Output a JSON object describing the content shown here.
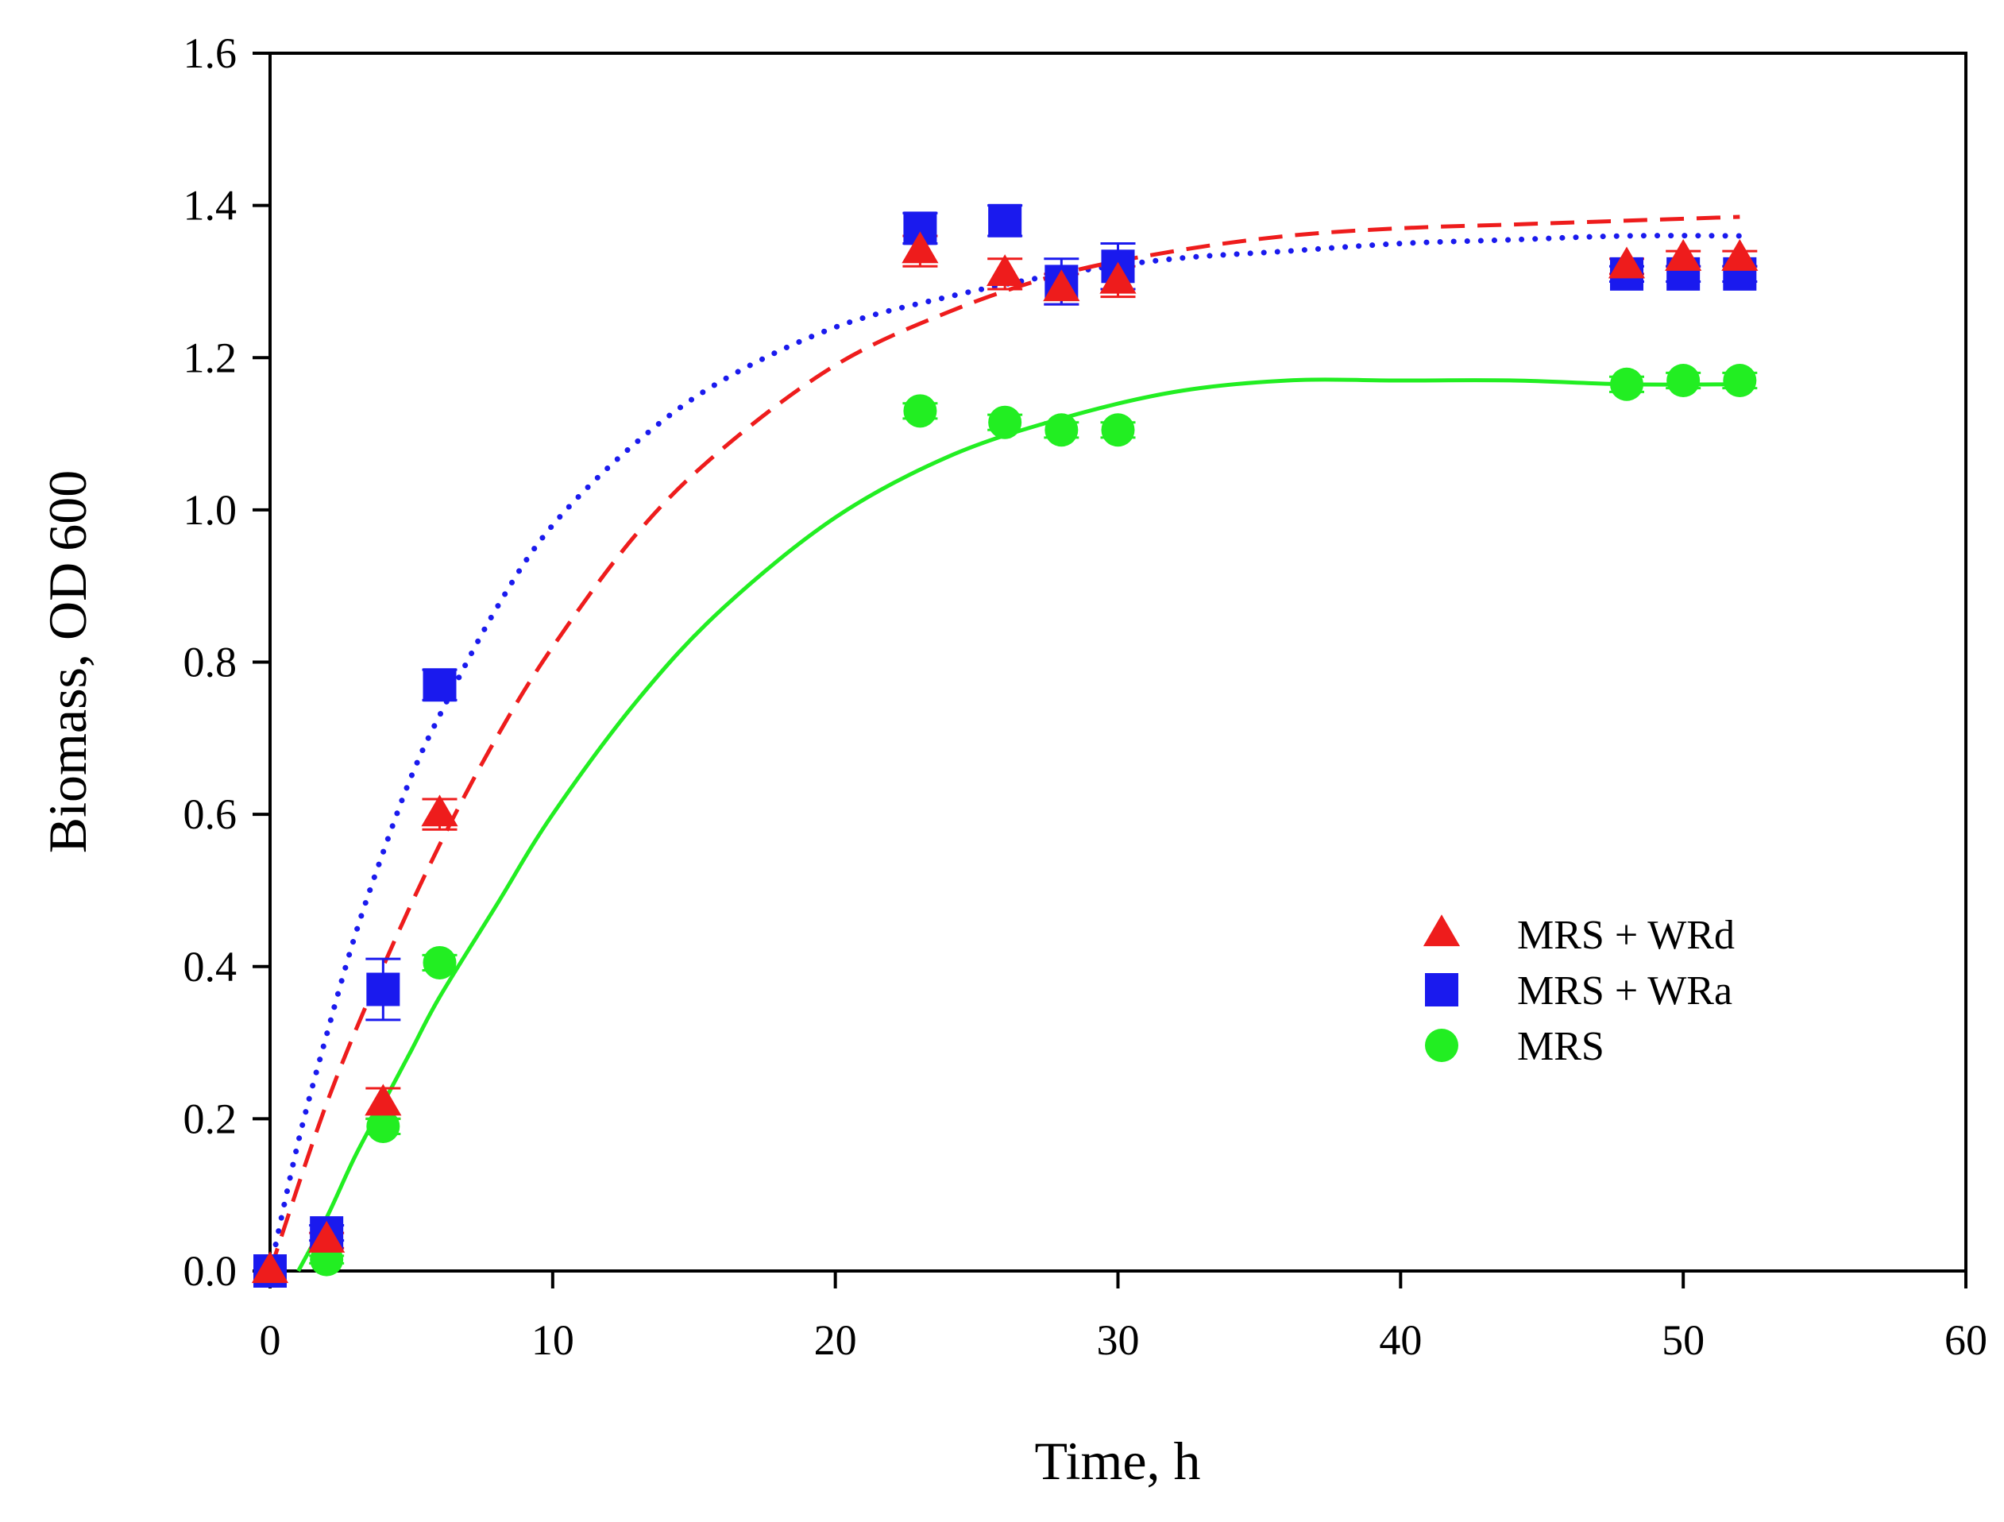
{
  "chart_data": {
    "type": "scatter",
    "xlabel": "Time, h",
    "ylabel": "Biomass, OD",
    "ylabel_subscript": "600",
    "xlim": [
      0,
      60
    ],
    "ylim": [
      0,
      1.6
    ],
    "xticks": [
      "0",
      "10",
      "20",
      "30",
      "40",
      "50",
      "60"
    ],
    "yticks": [
      "0.0",
      "0.2",
      "0.4",
      "0.6",
      "0.8",
      "1.0",
      "1.2",
      "1.4",
      "1.6"
    ],
    "grid": false,
    "legend_position": "lower-right",
    "series": [
      {
        "name": "MRS + WRd",
        "marker": "triangle",
        "color": "#ee1c1c",
        "line_style": "dashed",
        "x": [
          0,
          2,
          4,
          6,
          23,
          26,
          28,
          30,
          48,
          50,
          52
        ],
        "y": [
          0.0,
          0.04,
          0.22,
          0.6,
          1.34,
          1.31,
          1.29,
          1.3,
          1.32,
          1.33,
          1.33
        ],
        "err": [
          0.0,
          0.01,
          0.02,
          0.02,
          0.02,
          0.02,
          0.02,
          0.02,
          0.01,
          0.01,
          0.01
        ],
        "fit_x": [
          0,
          2,
          4,
          6,
          8,
          10,
          13,
          16,
          20,
          24,
          28,
          32,
          36,
          40,
          44,
          48,
          52
        ],
        "fit_y": [
          0.0,
          0.22,
          0.4,
          0.56,
          0.7,
          0.82,
          0.97,
          1.08,
          1.19,
          1.26,
          1.31,
          1.34,
          1.36,
          1.37,
          1.375,
          1.38,
          1.385
        ]
      },
      {
        "name": "MRS + WRa",
        "marker": "square",
        "color": "#1a1aee",
        "line_style": "dotted",
        "x": [
          0,
          2,
          4,
          6,
          23,
          26,
          28,
          30,
          48,
          50,
          52
        ],
        "y": [
          0.0,
          0.05,
          0.37,
          0.77,
          1.37,
          1.38,
          1.3,
          1.32,
          1.31,
          1.31,
          1.31
        ],
        "err": [
          0.0,
          0.01,
          0.04,
          0.02,
          0.02,
          0.02,
          0.03,
          0.03,
          0.01,
          0.01,
          0.01
        ],
        "fit_x": [
          0,
          1,
          2,
          3,
          4,
          5,
          6,
          8,
          10,
          13,
          16,
          20,
          24,
          28,
          32,
          36,
          40,
          44,
          48,
          52
        ],
        "fit_y": [
          0.0,
          0.17,
          0.31,
          0.44,
          0.55,
          0.65,
          0.73,
          0.87,
          0.98,
          1.09,
          1.17,
          1.24,
          1.28,
          1.31,
          1.33,
          1.34,
          1.35,
          1.355,
          1.36,
          1.36
        ]
      },
      {
        "name": "MRS",
        "marker": "circle",
        "color": "#22ee22",
        "line_style": "solid",
        "x": [
          0,
          2,
          4,
          6,
          23,
          26,
          28,
          30,
          48,
          50,
          52
        ],
        "y": [
          0.0,
          0.015,
          0.19,
          0.405,
          1.13,
          1.115,
          1.105,
          1.105,
          1.165,
          1.17,
          1.17
        ],
        "err": [
          0.0,
          0.005,
          0.01,
          0.01,
          0.01,
          0.01,
          0.01,
          0.01,
          0.01,
          0.01,
          0.01
        ],
        "fit_x": [
          1,
          2,
          3,
          4,
          5,
          6,
          8,
          10,
          13,
          16,
          20,
          24,
          28,
          32,
          36,
          40,
          44,
          48,
          52
        ],
        "fit_y": [
          0.0,
          0.07,
          0.15,
          0.22,
          0.29,
          0.36,
          0.48,
          0.6,
          0.75,
          0.87,
          0.99,
          1.07,
          1.12,
          1.155,
          1.17,
          1.17,
          1.17,
          1.165,
          1.165
        ]
      }
    ]
  }
}
